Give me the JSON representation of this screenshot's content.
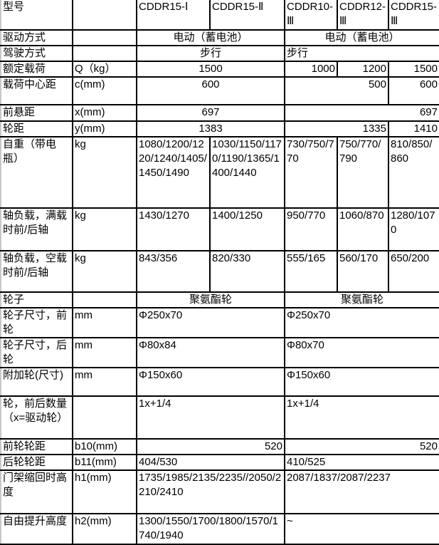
{
  "rows": [
    {
      "cells": [
        {
          "t": "型号"
        },
        {
          "t": ""
        },
        {
          "t": "CDDR15-Ⅰ"
        },
        {
          "t": "CDDR15-Ⅱ"
        },
        {
          "t": "CDDR10-Ⅲ"
        },
        {
          "t": "CDDR12-Ⅲ"
        },
        {
          "t": "CDDR15-Ⅲ"
        }
      ]
    },
    {
      "cells": [
        {
          "t": "驱动方式"
        },
        {
          "t": ""
        },
        {
          "t": "电动（蓄电池）",
          "span": 2,
          "a": "c"
        },
        {
          "t": "电动（蓄电池）",
          "span": 3,
          "a": "c"
        }
      ]
    },
    {
      "cells": [
        {
          "t": "驾驶方式"
        },
        {
          "t": ""
        },
        {
          "t": "步行",
          "span": 2,
          "a": "c"
        },
        {
          "t": "步行",
          "span": 3
        }
      ]
    },
    {
      "cells": [
        {
          "t": "额定载荷"
        },
        {
          "t": "Q（kg）"
        },
        {
          "t": "1500",
          "span": 2,
          "a": "c"
        },
        {
          "t": "1000",
          "a": "r"
        },
        {
          "t": "1200",
          "a": "r"
        },
        {
          "t": "1500",
          "a": "r"
        }
      ]
    },
    {
      "cells": [
        {
          "t": "载荷中心距"
        },
        {
          "t": "c(mm)"
        },
        {
          "t": "600",
          "span": 2,
          "a": "c"
        },
        {
          "t": "500",
          "span": 2,
          "a": "r"
        },
        {
          "t": "600",
          "a": "r"
        }
      ]
    },
    {
      "cells": [
        {
          "t": "前悬距"
        },
        {
          "t": "x(mm)"
        },
        {
          "t": "697",
          "span": 2,
          "a": "c"
        },
        {
          "t": "697",
          "span": 3,
          "a": "r"
        }
      ]
    },
    {
      "cells": [
        {
          "t": "轮距"
        },
        {
          "t": "y(mm)"
        },
        {
          "t": "1383",
          "span": 2,
          "a": "c"
        },
        {
          "t": "1335",
          "span": 2,
          "a": "r"
        },
        {
          "t": "1410",
          "a": "r"
        }
      ]
    },
    {
      "cells": [
        {
          "t": "自重（带电瓶）"
        },
        {
          "t": "kg"
        },
        {
          "t": "1080/1200/1220/1240/1405/1450/1490"
        },
        {
          "t": "1030/1150/1170/1190/1365/1400/1440"
        },
        {
          "t": "730/750/770"
        },
        {
          "t": "750/770/790"
        },
        {
          "t": "810/850/860"
        }
      ]
    },
    {
      "cells": [
        {
          "t": "轴负载，满载时前/后轴"
        },
        {
          "t": "kg"
        },
        {
          "t": "1430/1270"
        },
        {
          "t": "1400/1250"
        },
        {
          "t": "950/770"
        },
        {
          "t": "1060/870"
        },
        {
          "t": "1280/1070"
        }
      ]
    },
    {
      "cells": [
        {
          "t": "轴负载，空载时前/后轴"
        },
        {
          "t": "kg"
        },
        {
          "t": "843/356"
        },
        {
          "t": "820/330"
        },
        {
          "t": "555/165"
        },
        {
          "t": "560/170"
        },
        {
          "t": "650/200"
        }
      ]
    },
    {
      "cells": [
        {
          "t": "轮子"
        },
        {
          "t": ""
        },
        {
          "t": "聚氨酯轮",
          "span": 2,
          "a": "c"
        },
        {
          "t": "聚氨酯轮",
          "span": 3,
          "a": "c"
        }
      ]
    },
    {
      "cells": [
        {
          "t": "轮子尺寸，前轮"
        },
        {
          "t": "mm"
        },
        {
          "t": "Φ250x70",
          "span": 2
        },
        {
          "t": "Φ250x70",
          "span": 3
        }
      ]
    },
    {
      "cells": [
        {
          "t": "轮子尺寸，后轮"
        },
        {
          "t": "mm"
        },
        {
          "t": "Φ80x84",
          "span": 2
        },
        {
          "t": "Φ80x70",
          "span": 3
        }
      ]
    },
    {
      "cells": [
        {
          "t": "附加轮(尺寸)"
        },
        {
          "t": "mm"
        },
        {
          "t": "Φ150x60",
          "span": 2
        },
        {
          "t": "Φ150x60",
          "span": 3
        }
      ]
    },
    {
      "cells": [
        {
          "t": "轮，前后数量（x=驱动轮）"
        },
        {
          "t": ""
        },
        {
          "t": "1x+1/4",
          "span": 2
        },
        {
          "t": "1x+1/4",
          "span": 3
        }
      ]
    },
    {
      "cells": [
        {
          "t": "前轮轮距"
        },
        {
          "t": "b10(mm)"
        },
        {
          "t": "520",
          "span": 2,
          "a": "r"
        },
        {
          "t": "520",
          "span": 3,
          "a": "r"
        }
      ]
    },
    {
      "cells": [
        {
          "t": "后轮轮距"
        },
        {
          "t": "b11(mm)"
        },
        {
          "t": "404/530",
          "span": 2
        },
        {
          "t": "410/525",
          "span": 3
        }
      ]
    },
    {
      "cells": [
        {
          "t": "门架缩回时高度"
        },
        {
          "t": "h1(mm)"
        },
        {
          "t": "1735/1985/2135/2235//2050/2210/2410",
          "span": 2
        },
        {
          "t": "2087/1837/2087/2237",
          "span": 3
        }
      ]
    },
    {
      "cells": [
        {
          "t": "自由提升高度"
        },
        {
          "t": "h2(mm)"
        },
        {
          "t": "1300/1550/1700/1800/1570/1740/1940",
          "span": 2
        },
        {
          "t": "~",
          "span": 3
        }
      ]
    }
  ]
}
